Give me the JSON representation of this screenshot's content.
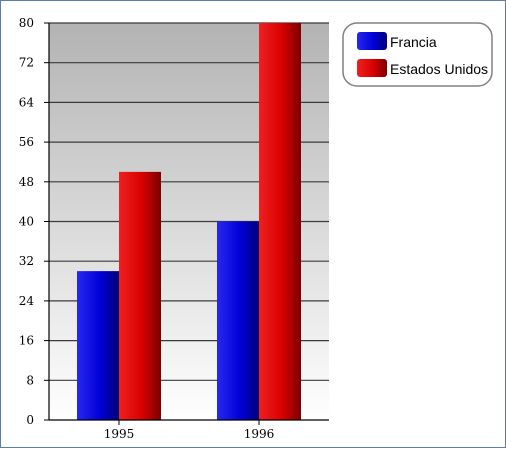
{
  "chart_data": {
    "type": "bar",
    "categories": [
      "1995",
      "1996"
    ],
    "series": [
      {
        "name": "Francia",
        "values": [
          30,
          40
        ],
        "color": "#0a0ad0"
      },
      {
        "name": "Estados Unidos",
        "values": [
          50,
          80
        ],
        "color": "#d00a0a"
      }
    ],
    "ylim": [
      0,
      80
    ],
    "yticks": [
      "0",
      "8",
      "16",
      "24",
      "32",
      "40",
      "48",
      "56",
      "64",
      "72",
      "80"
    ],
    "grid": true,
    "legend_position": "top-right"
  }
}
